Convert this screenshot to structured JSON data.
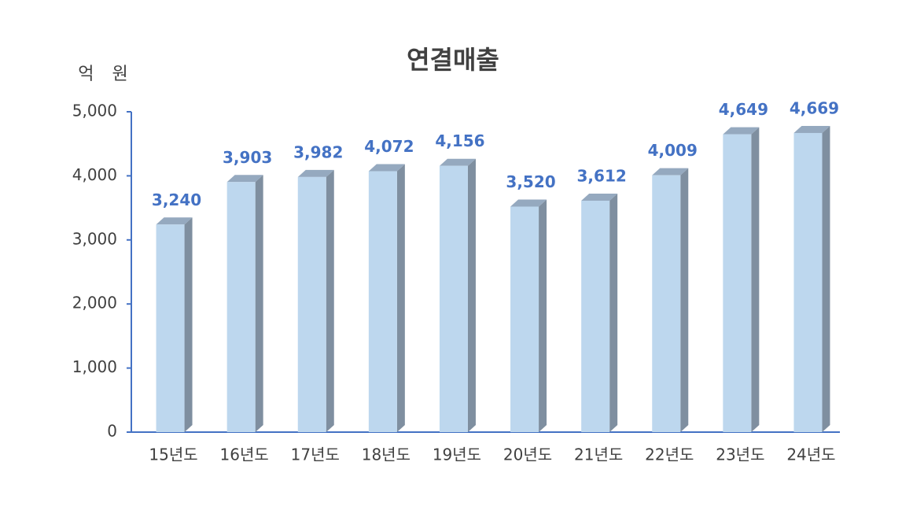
{
  "chart_data": {
    "type": "bar3d",
    "title": "연결매출",
    "y_label": "억 원",
    "categories": [
      "15년도",
      "16년도",
      "17년도",
      "18년도",
      "19년도",
      "20년도",
      "21년도",
      "22년도",
      "23년도",
      "24년도"
    ],
    "values": [
      3240,
      3903,
      3982,
      4072,
      4156,
      3520,
      3612,
      4009,
      4649,
      4669
    ],
    "value_labels": [
      "3,240",
      "3,903",
      "3,982",
      "4,072",
      "4,156",
      "3,520",
      "3,612",
      "4,009",
      "4,649",
      "4,669"
    ],
    "color": "#bdd7ee",
    "label_color": "#4472c4",
    "ylim": [
      0,
      5000
    ],
    "yticks": [
      0,
      {
        "value": 1000,
        "label": "1,000"
      },
      {
        "value": 2000,
        "label": "2,000"
      },
      {
        "value": 3000,
        "label": "3,000"
      },
      {
        "value": 4000,
        "label": "4,000"
      },
      {
        "value": 5000,
        "label": "5,000"
      }
    ]
  }
}
